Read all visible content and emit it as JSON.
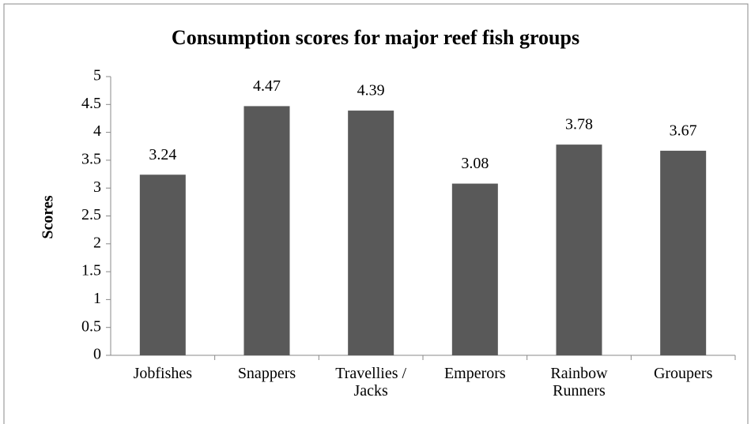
{
  "chart_data": {
    "type": "bar",
    "title": "Consumption scores for major reef fish groups",
    "y_label": "Scores",
    "categories": [
      "Jobfishes",
      "Snappers",
      "Travellies / Jacks",
      "Emperors",
      "Rainbow Runners",
      "Groupers"
    ],
    "values": [
      3.24,
      4.47,
      4.39,
      3.08,
      3.78,
      3.67
    ],
    "color": "#595959",
    "ylim": [
      0,
      5
    ],
    "yticks": [
      0,
      0.5,
      1,
      1.5,
      2,
      2.5,
      3,
      3.5,
      4,
      4.5,
      5
    ],
    "grid": false
  }
}
